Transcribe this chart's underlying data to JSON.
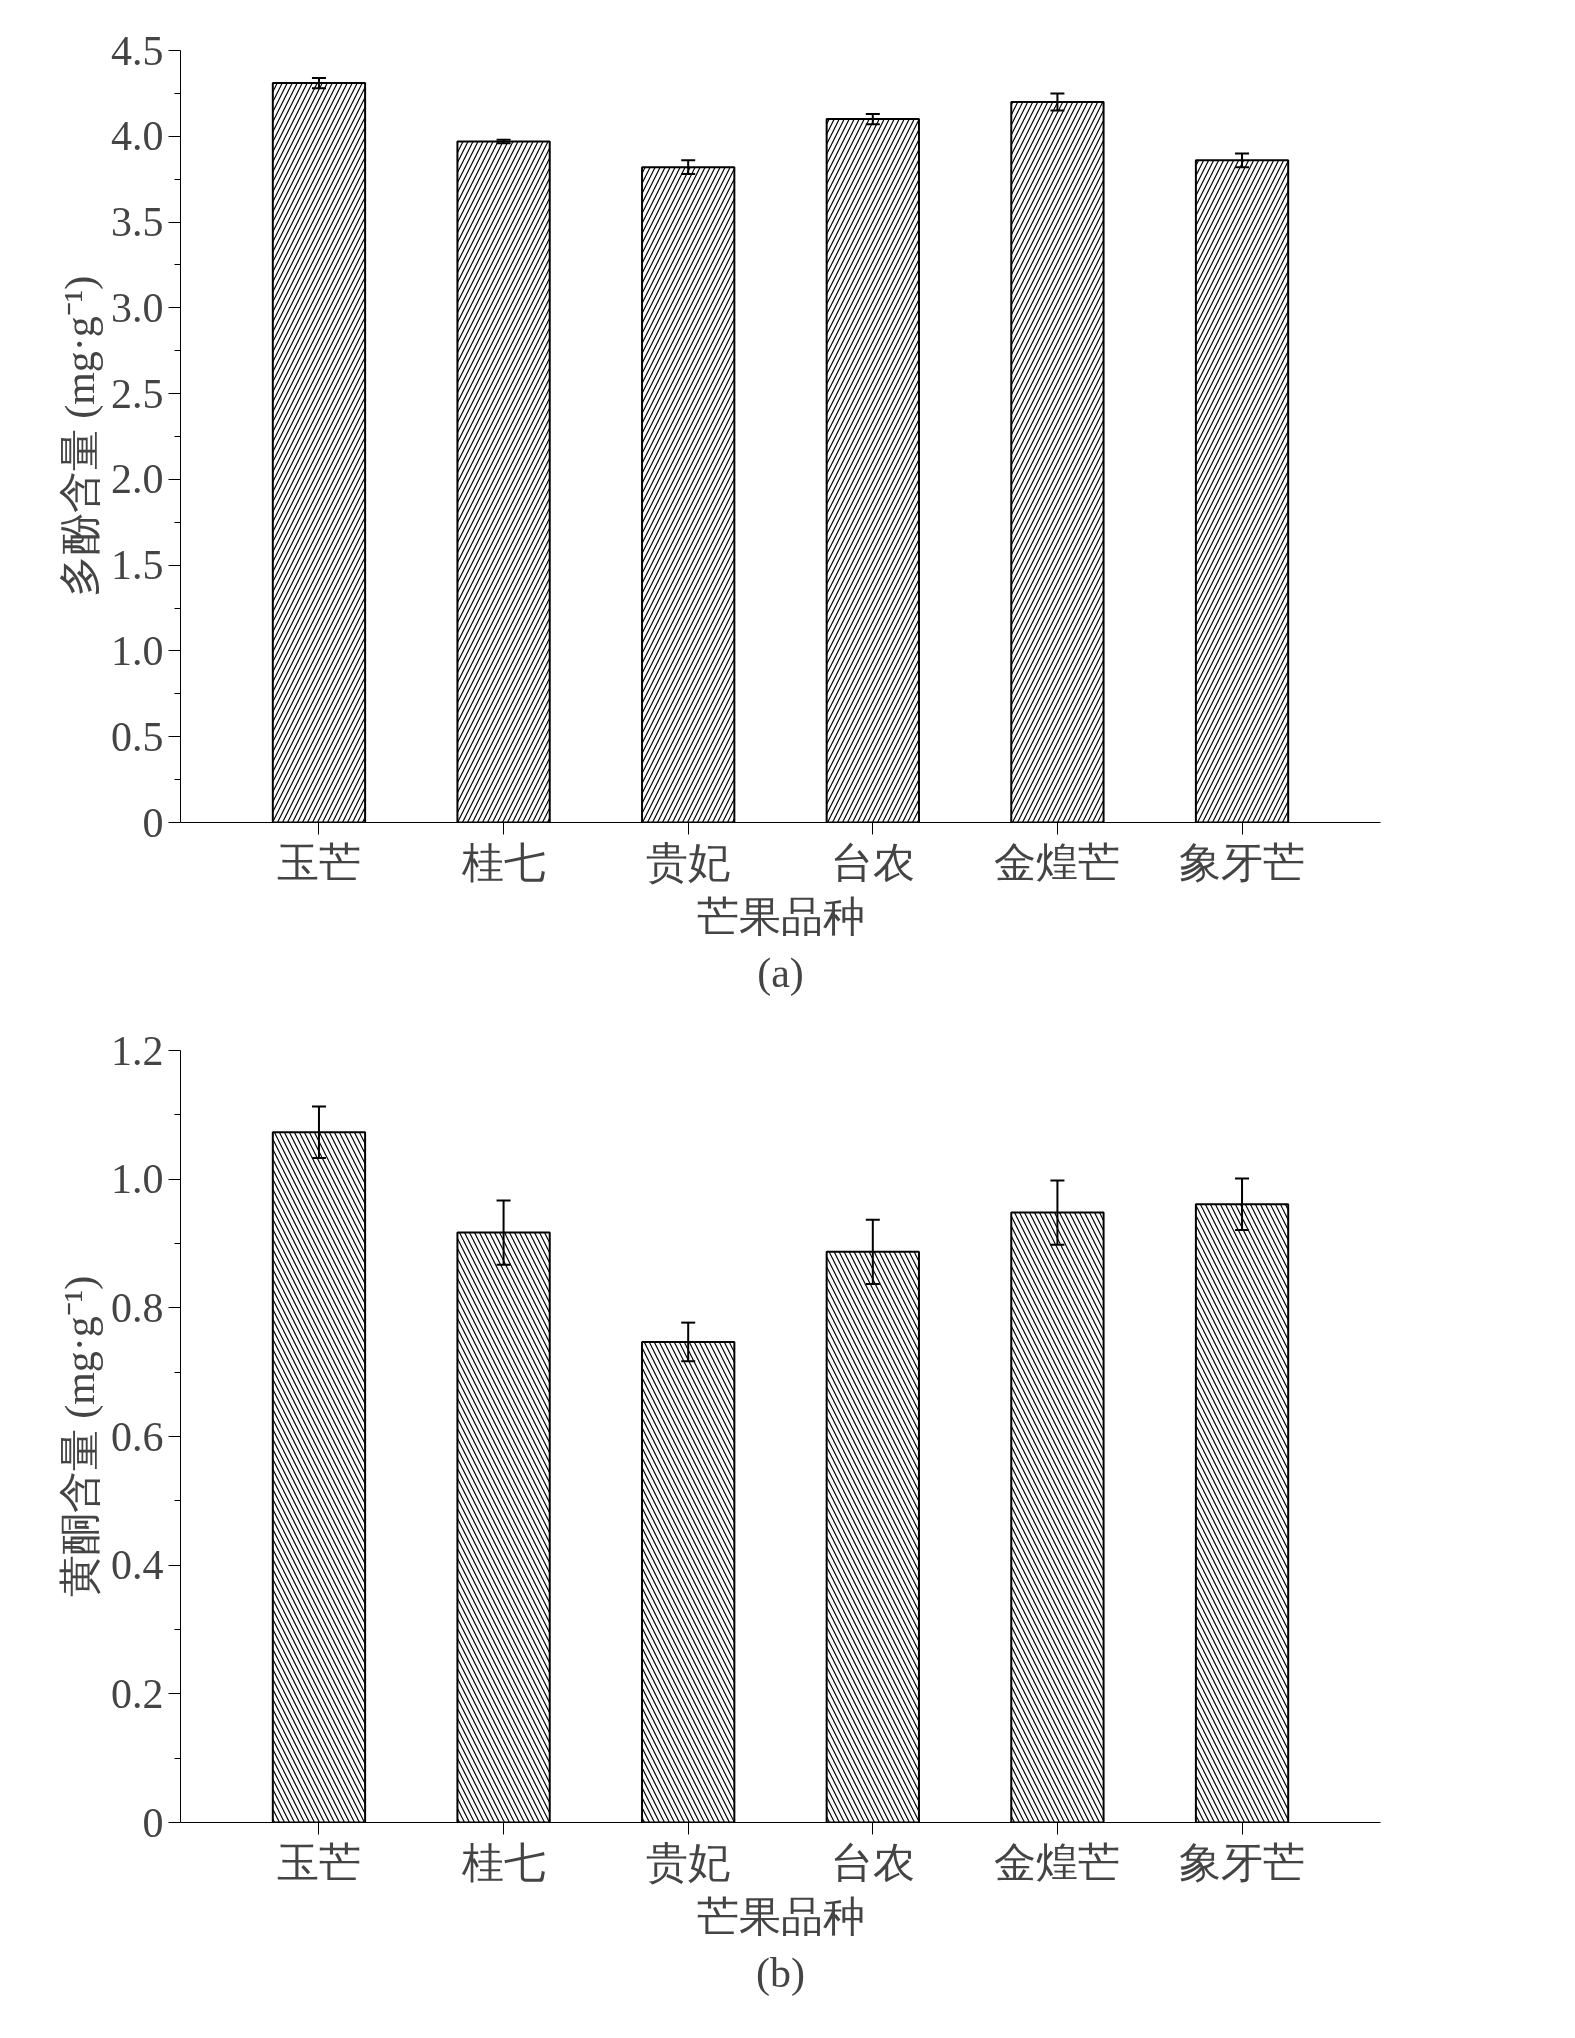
{
  "chart_data": [
    {
      "type": "bar",
      "xlabel": "芒果品种",
      "ylabel": "多酚含量 (mg·g⁻¹)",
      "annotations": [
        "(a)"
      ],
      "categories": [
        "玉芒",
        "桂七",
        "贵妃",
        "台农",
        "金煌芒",
        "象牙芒"
      ],
      "series": [
        {
          "color": "#000000",
          "values": [
            4.31,
            3.97,
            3.82,
            4.1,
            4.2,
            3.86
          ],
          "errors": [
            0.03,
            0.01,
            0.04,
            0.03,
            0.05,
            0.04
          ]
        }
      ],
      "ylim": [
        0,
        4.5
      ],
      "yticks": [
        0,
        {
          "value": 0.5,
          "label": "0.5"
        },
        {
          "value": 1,
          "label": "1.0"
        },
        {
          "value": 1.5,
          "label": "1.5"
        },
        {
          "value": 2,
          "label": "2.0"
        },
        {
          "value": 2.5,
          "label": "2.5"
        },
        {
          "value": 3,
          "label": "3.0"
        },
        {
          "value": 3.5,
          "label": "3.5"
        },
        {
          "value": 4,
          "label": "4.0"
        },
        {
          "value": 4.5,
          "label": "4.5"
        }
      ],
      "grid": false
    },
    {
      "type": "bar",
      "xlabel": "芒果品种",
      "ylabel": "黄酮含量 (mg·g⁻¹)",
      "annotations": [
        "(b)"
      ],
      "categories": [
        "玉芒",
        "桂七",
        "贵妃",
        "台农",
        "金煌芒",
        "象牙芒"
      ],
      "series": [
        {
          "color": "#000000",
          "values": [
            1.073,
            0.917,
            0.747,
            0.887,
            0.948,
            0.961
          ],
          "errors": [
            0.04,
            0.05,
            0.03,
            0.05,
            0.05,
            0.04
          ]
        }
      ],
      "ylim": [
        0,
        1.2
      ],
      "yticks": [
        0,
        {
          "value": 0.2,
          "label": "0.2"
        },
        {
          "value": 0.4,
          "label": "0.4"
        },
        {
          "value": 0.6,
          "label": "0.6"
        },
        {
          "value": 0.8,
          "label": "0.8"
        },
        {
          "value": 1,
          "label": "1.0"
        },
        {
          "value": 1.2,
          "label": "1.2"
        }
      ],
      "grid": false
    }
  ]
}
